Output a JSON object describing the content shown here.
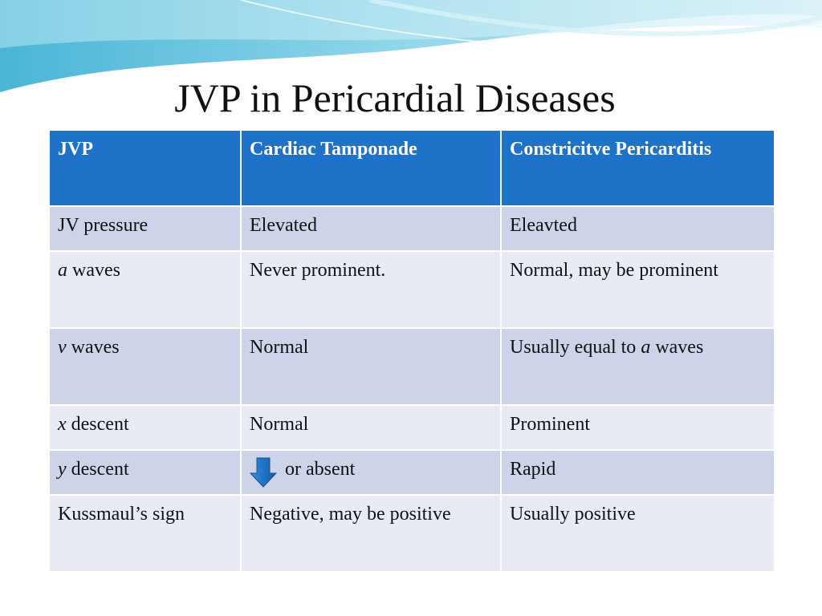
{
  "title": "JVP in Pericardial Diseases",
  "colors": {
    "header_bg": "#1e72c8",
    "row_dark": "#cdd4ea",
    "row_light": "#e8ebf4",
    "arrow": "#1e72c8"
  },
  "table": {
    "headers": [
      "JVP",
      "Cardiac Tamponade",
      "Constricitve Pericarditis"
    ],
    "rows": [
      {
        "param_italic": "",
        "param_rest": "JV pressure",
        "tamponade": "Elevated",
        "constrictive_pre": "Eleavted",
        "constrictive_italic": "",
        "constrictive_post": ""
      },
      {
        "param_italic": "a",
        "param_rest": " waves",
        "tamponade": "Never prominent.",
        "constrictive_pre": "Normal, may be prominent",
        "constrictive_italic": "",
        "constrictive_post": ""
      },
      {
        "param_italic": "v",
        "param_rest": " waves",
        "tamponade": "Normal",
        "constrictive_pre": "Usually equal to ",
        "constrictive_italic": "a",
        "constrictive_post": " waves"
      },
      {
        "param_italic": "x",
        "param_rest": " descent",
        "tamponade": "Normal",
        "constrictive_pre": "Prominent",
        "constrictive_italic": "",
        "constrictive_post": ""
      },
      {
        "param_italic": "y",
        "param_rest": " descent",
        "tamponade_icon": "down-arrow-icon",
        "tamponade": "or absent",
        "constrictive_pre": "Rapid",
        "constrictive_italic": "",
        "constrictive_post": ""
      },
      {
        "param_italic": "",
        "param_rest": "Kussmaul’s sign",
        "tamponade": "Negative, may be positive",
        "constrictive_pre": "Usually positive",
        "constrictive_italic": "",
        "constrictive_post": ""
      }
    ]
  }
}
